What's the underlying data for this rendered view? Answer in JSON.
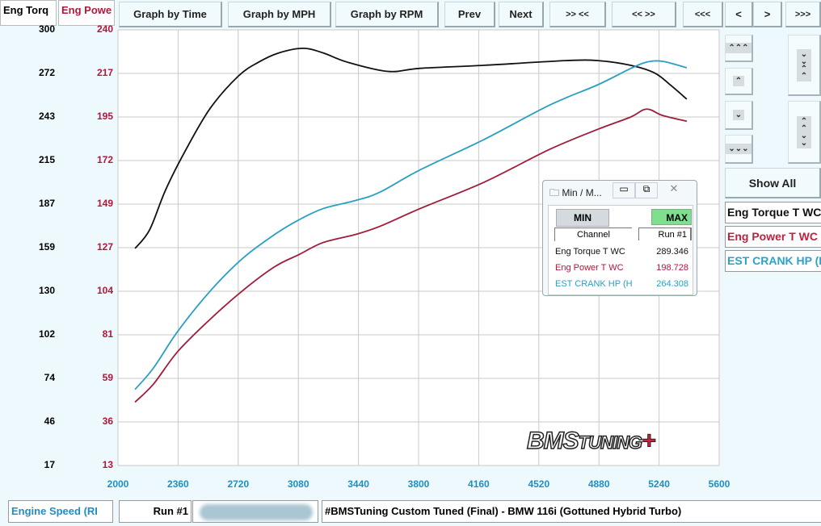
{
  "header": {
    "torque_label": "Eng Torq",
    "power_label": "Eng Powe"
  },
  "toolbar": {
    "buttons": [
      "Graph by Time",
      "Graph by MPH",
      "Graph by RPM",
      "Prev",
      "Next",
      ">> <<",
      "<< >>",
      "<<<",
      "<",
      ">",
      ">>>"
    ]
  },
  "right_panel": {
    "scroll_up_fast": "⌃⌃⌃",
    "scroll_up": "⌃",
    "scroll_down": "⌄",
    "scroll_down_fast": "⌄⌄⌄",
    "expand": "⌄⌄⌃⌃",
    "collapse": "⌃⌃⌄⌄",
    "show_all": "Show All",
    "legend": [
      "Eng Torque T WC",
      "Eng Power T WC",
      "EST CRANK HP (H"
    ]
  },
  "minmax": {
    "title": "Min / M...",
    "min_label": "MIN",
    "max_label": "MAX",
    "col_channel": "Channel",
    "col_run": "Run #1",
    "rows": [
      {
        "channel": "Eng Torque T WC",
        "value": "289.346"
      },
      {
        "channel": "Eng Power T WC",
        "value": "198.728"
      },
      {
        "channel": "EST CRANK HP (H",
        "value": "264.308"
      }
    ]
  },
  "footer": {
    "x_channel": "Engine Speed (RI",
    "run": "Run #1",
    "title": "#BMSTuning Custom Tuned (Final) - BMW 116i (Gottuned Hybrid Turbo)"
  },
  "logo": "BMSTUNING",
  "colors": {
    "torque": "#111111",
    "power": "#a01d3a",
    "crank_hp": "#2a9fc4",
    "axis_x": "#1e8fc4",
    "max_active": "#7ee08e"
  },
  "chart_data": {
    "type": "line",
    "xlabel": "Engine Speed (RI",
    "x_ticks": [
      2000,
      2360,
      2720,
      3080,
      3440,
      3800,
      4160,
      4520,
      4880,
      5240,
      5600
    ],
    "xlim": [
      2000,
      5600
    ],
    "y_left_ticks": [
      300,
      272,
      243,
      215,
      187,
      159,
      130,
      102,
      74,
      46,
      17
    ],
    "y_left_lim": [
      17,
      300
    ],
    "y_right_ticks": [
      240,
      217,
      195,
      172,
      149,
      127,
      104,
      81,
      59,
      36,
      13
    ],
    "y_right_lim": [
      13,
      240
    ],
    "grid": true,
    "series": [
      {
        "name": "Eng Torque T WC",
        "axis": "left",
        "x": [
          2102,
          2189,
          2285,
          2406,
          2552,
          2721,
          2842,
          2963,
          3108,
          3229,
          3374,
          3616,
          3810,
          4197,
          4681,
          4874,
          5068,
          5213,
          5310,
          5406
        ],
        "y": [
          158,
          170,
          196,
          222,
          249,
          270,
          279,
          285,
          288,
          285,
          279,
          273,
          275,
          277,
          280,
          280,
          277,
          272,
          264,
          255
        ]
      },
      {
        "name": "Eng Power T WC",
        "axis": "right",
        "x": [
          2102,
          2213,
          2358,
          2552,
          2745,
          2939,
          3084,
          3229,
          3423,
          3568,
          3810,
          4197,
          4584,
          4874,
          5068,
          5165,
          5261,
          5406
        ],
        "y": [
          46,
          55.5,
          72.4,
          89.2,
          104,
          116.6,
          122.9,
          129.2,
          133.4,
          137.6,
          146.9,
          160.8,
          177.7,
          188.2,
          194.5,
          198.7,
          195.4,
          192.4
        ]
      },
      {
        "name": "EST CRANK HP (H",
        "axis": "own",
        "x": [
          2102,
          2213,
          2358,
          2552,
          2745,
          2939,
          3084,
          3229,
          3423,
          3568,
          3810,
          4197,
          4584,
          4874,
          5068,
          5165,
          5261,
          5406
        ],
        "y": [
          62.2,
          75.5,
          98,
          122.8,
          142.8,
          157.7,
          166.7,
          173.6,
          178.6,
          183.7,
          197.5,
          216.4,
          237.3,
          249.9,
          259.8,
          263.8,
          264.3,
          260.3
        ]
      }
    ]
  }
}
